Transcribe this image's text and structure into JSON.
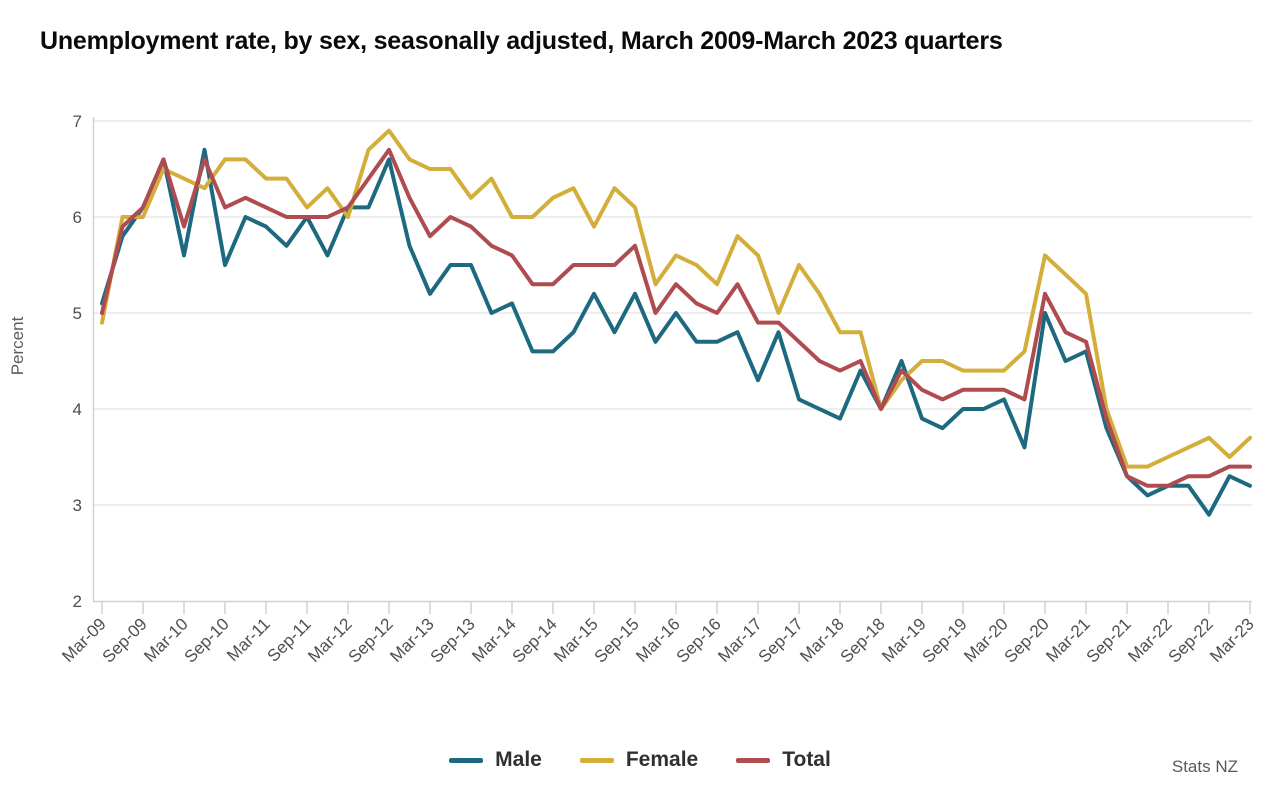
{
  "header": {
    "title": "Unemployment rate, by sex, seasonally adjusted, March 2009-March 2023 quarters"
  },
  "axes": {
    "y_title": "Percent",
    "y_ticks": [
      2,
      3,
      4,
      5,
      6,
      7
    ],
    "x_tick_labels": [
      "Mar-09",
      "Sep-09",
      "Mar-10",
      "Sep-10",
      "Mar-11",
      "Sep-11",
      "Mar-12",
      "Sep-12",
      "Mar-13",
      "Sep-13",
      "Mar-14",
      "Sep-14",
      "Mar-15",
      "Sep-15",
      "Mar-16",
      "Sep-16",
      "Mar-17",
      "Sep-17",
      "Mar-18",
      "Sep-18",
      "Mar-19",
      "Sep-19",
      "Mar-20",
      "Sep-20",
      "Mar-21",
      "Sep-21",
      "Mar-22",
      "Sep-22",
      "Mar-23"
    ]
  },
  "legend": {
    "items": [
      {
        "label": "Male",
        "color": "#1d6a80"
      },
      {
        "label": "Female",
        "color": "#d3ae3b"
      },
      {
        "label": "Total",
        "color": "#af4c50"
      }
    ]
  },
  "footer": {
    "credit": "Stats NZ"
  },
  "colors": {
    "male": "#1d6a80",
    "female": "#d3ae3b",
    "total": "#af4c50",
    "gridline": "#e9e9e9",
    "axis": "#c9d3e4",
    "tick_text": "#4f4f4f"
  },
  "chart_data": {
    "type": "line",
    "title": "Unemployment rate, by sex, seasonally adjusted, March 2009-March 2023 quarters",
    "xlabel": "",
    "ylabel": "Percent",
    "ylim": [
      2,
      7
    ],
    "grid": "horizontal only",
    "legend_position": "bottom-center",
    "x_tick_labels": [
      "Mar-09",
      "Sep-09",
      "Mar-10",
      "Sep-10",
      "Mar-11",
      "Sep-11",
      "Mar-12",
      "Sep-12",
      "Mar-13",
      "Sep-13",
      "Mar-14",
      "Sep-14",
      "Mar-15",
      "Sep-15",
      "Mar-16",
      "Sep-16",
      "Mar-17",
      "Sep-17",
      "Mar-18",
      "Sep-18",
      "Mar-19",
      "Sep-19",
      "Mar-20",
      "Sep-20",
      "Mar-21",
      "Sep-21",
      "Mar-22",
      "Sep-22",
      "Mar-23"
    ],
    "categories": [
      "Mar-09",
      "Jun-09",
      "Sep-09",
      "Dec-09",
      "Mar-10",
      "Jun-10",
      "Sep-10",
      "Dec-10",
      "Mar-11",
      "Jun-11",
      "Sep-11",
      "Dec-11",
      "Mar-12",
      "Jun-12",
      "Sep-12",
      "Dec-12",
      "Mar-13",
      "Jun-13",
      "Sep-13",
      "Dec-13",
      "Mar-14",
      "Jun-14",
      "Sep-14",
      "Dec-14",
      "Mar-15",
      "Jun-15",
      "Sep-15",
      "Dec-15",
      "Mar-16",
      "Jun-16",
      "Sep-16",
      "Dec-16",
      "Mar-17",
      "Jun-17",
      "Sep-17",
      "Dec-17",
      "Mar-18",
      "Jun-18",
      "Sep-18",
      "Dec-18",
      "Mar-19",
      "Jun-19",
      "Sep-19",
      "Dec-19",
      "Mar-20",
      "Jun-20",
      "Sep-20",
      "Dec-20",
      "Mar-21",
      "Jun-21",
      "Sep-21",
      "Dec-21",
      "Mar-22",
      "Jun-22",
      "Sep-22",
      "Dec-22",
      "Mar-23"
    ],
    "series": [
      {
        "name": "Male",
        "color": "#1d6a80",
        "values": [
          5.1,
          5.8,
          6.1,
          6.6,
          5.6,
          6.7,
          5.5,
          6.0,
          5.9,
          5.7,
          6.0,
          5.6,
          6.1,
          6.1,
          6.6,
          5.7,
          5.2,
          5.5,
          5.5,
          5.0,
          5.1,
          4.6,
          4.6,
          4.8,
          5.2,
          4.8,
          5.2,
          4.7,
          5.0,
          4.7,
          4.7,
          4.8,
          4.3,
          4.8,
          4.1,
          4.0,
          3.9,
          4.4,
          4.0,
          4.5,
          3.9,
          3.8,
          4.0,
          4.0,
          4.1,
          3.6,
          5.0,
          4.5,
          4.6,
          3.8,
          3.3,
          3.1,
          3.2,
          3.2,
          2.9,
          3.3,
          3.2
        ]
      },
      {
        "name": "Female",
        "color": "#d3ae3b",
        "values": [
          4.9,
          6.0,
          6.0,
          6.5,
          6.4,
          6.3,
          6.6,
          6.6,
          6.4,
          6.4,
          6.1,
          6.3,
          6.0,
          6.7,
          6.9,
          6.6,
          6.5,
          6.5,
          6.2,
          6.4,
          6.0,
          6.0,
          6.2,
          6.3,
          5.9,
          6.3,
          6.1,
          5.3,
          5.6,
          5.5,
          5.3,
          5.8,
          5.6,
          5.0,
          5.5,
          5.2,
          4.8,
          4.8,
          4.0,
          4.3,
          4.5,
          4.5,
          4.4,
          4.4,
          4.4,
          4.6,
          5.6,
          5.4,
          5.2,
          4.0,
          3.4,
          3.4,
          3.5,
          3.6,
          3.7,
          3.5,
          3.7
        ]
      },
      {
        "name": "Total",
        "color": "#af4c50",
        "values": [
          5.0,
          5.9,
          6.1,
          6.6,
          5.9,
          6.6,
          6.1,
          6.2,
          6.1,
          6.0,
          6.0,
          6.0,
          6.1,
          6.4,
          6.7,
          6.2,
          5.8,
          6.0,
          5.9,
          5.7,
          5.6,
          5.3,
          5.3,
          5.5,
          5.5,
          5.5,
          5.7,
          5.0,
          5.3,
          5.1,
          5.0,
          5.3,
          4.9,
          4.9,
          4.7,
          4.5,
          4.4,
          4.5,
          4.0,
          4.4,
          4.2,
          4.1,
          4.2,
          4.2,
          4.2,
          4.1,
          5.2,
          4.8,
          4.7,
          3.9,
          3.3,
          3.2,
          3.2,
          3.3,
          3.3,
          3.4,
          3.4
        ]
      }
    ]
  }
}
